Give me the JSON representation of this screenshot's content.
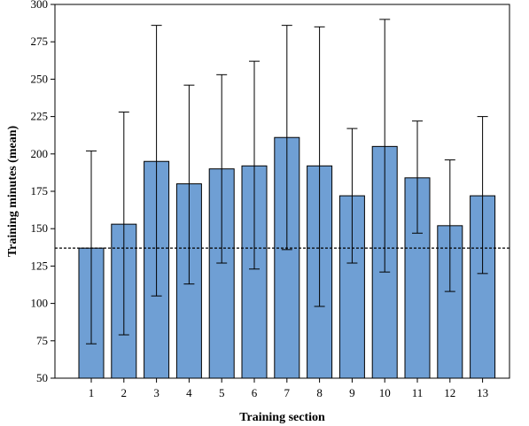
{
  "chart_data": {
    "type": "bar",
    "title": "",
    "xlabel": "Training section",
    "ylabel": "Training minutes (mean)",
    "ylim": [
      50,
      300
    ],
    "yticks": [
      50,
      75,
      100,
      125,
      150,
      175,
      200,
      225,
      250,
      275,
      300
    ],
    "categories": [
      "1",
      "2",
      "3",
      "4",
      "5",
      "6",
      "7",
      "8",
      "9",
      "10",
      "11",
      "12",
      "13"
    ],
    "values": [
      137,
      153,
      195,
      180,
      190,
      192,
      211,
      192,
      172,
      205,
      184,
      152,
      172
    ],
    "error_low": [
      73,
      79,
      105,
      113,
      127,
      123,
      136,
      98,
      127,
      121,
      147,
      108,
      120
    ],
    "error_high": [
      202,
      228,
      286,
      246,
      253,
      262,
      286,
      285,
      217,
      290,
      222,
      196,
      225
    ],
    "reference_line": 137,
    "bar_color": "#6f9fd4",
    "grid": false,
    "legend": "none"
  }
}
